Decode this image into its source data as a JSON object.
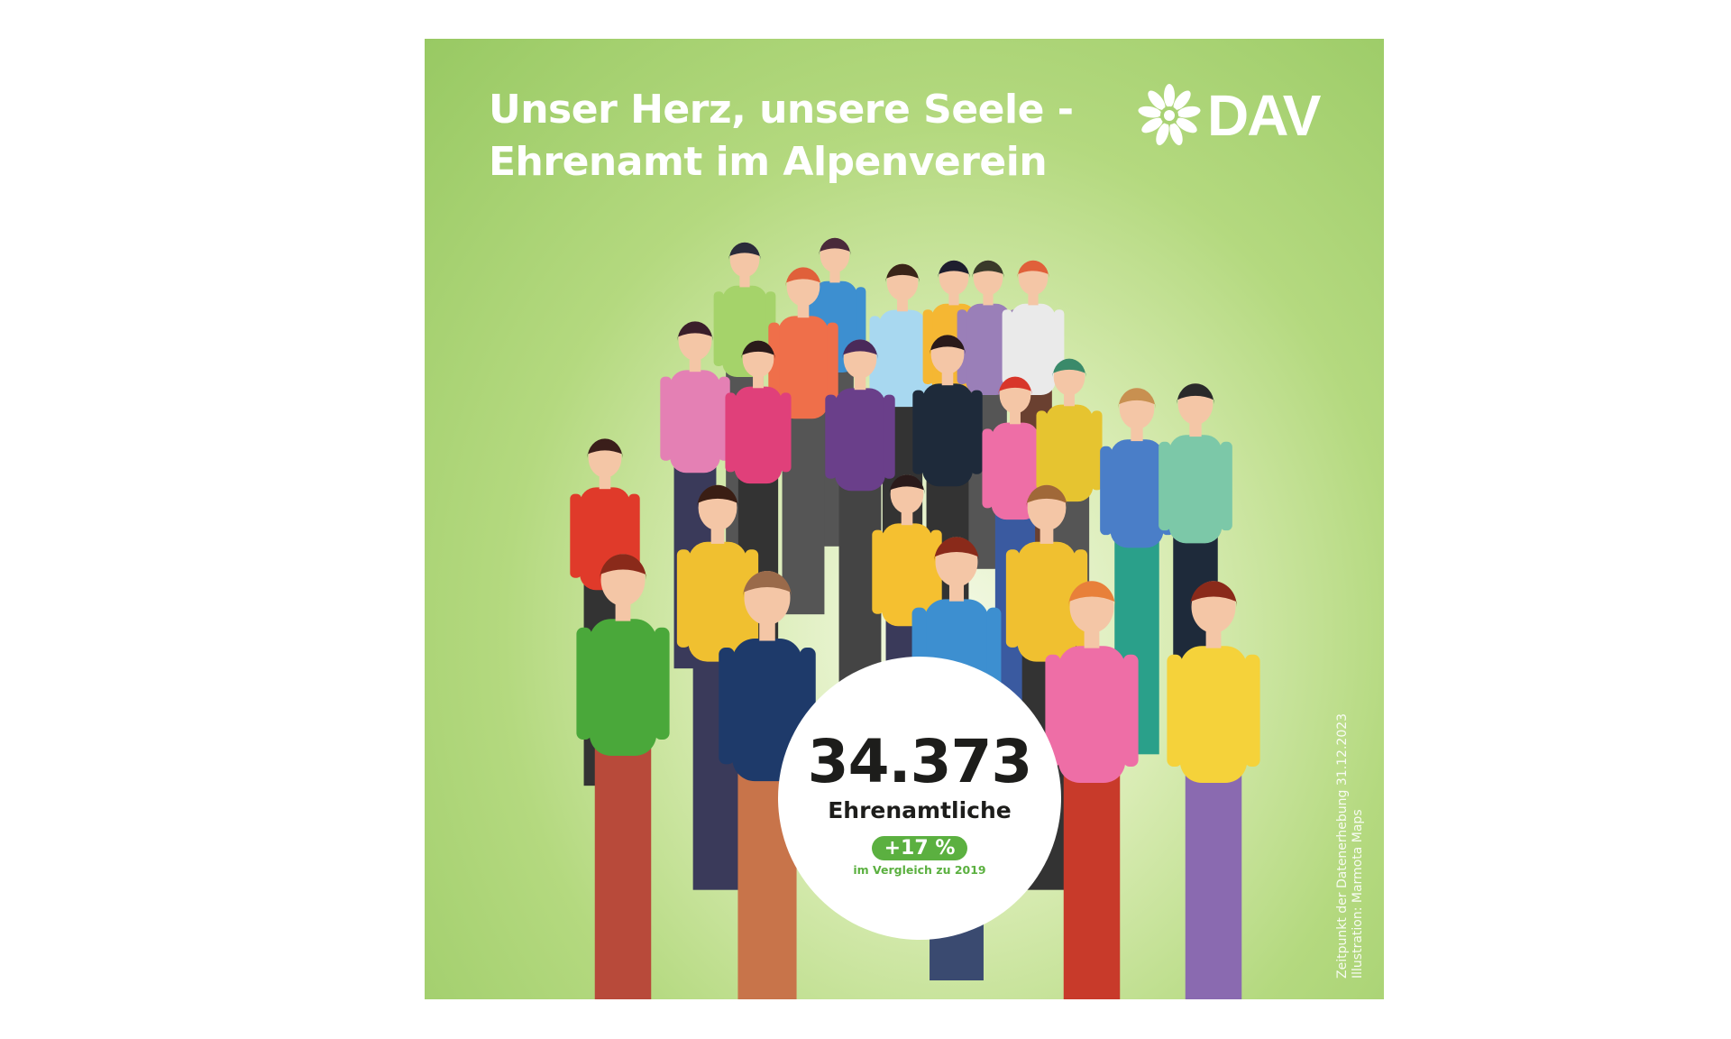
{
  "poster": {
    "title_line1": "Unser Herz, unsere Seele -",
    "title_line2": "Ehrenamt im Alpenverein",
    "logo_text": "DAV",
    "stat": {
      "count": "34.373",
      "label": "Ehrenamtliche",
      "change": "+17 %",
      "comparison": "im Vergleich zu 2019"
    },
    "credit_line1": "Zeitpunkt der Datenerhebung 31.12.2023",
    "credit_line2": "Illustration: Marmota Maps",
    "colors": {
      "background": "#a8d273",
      "accent": "#5bb040",
      "text_dark": "#1d1d1b"
    }
  }
}
